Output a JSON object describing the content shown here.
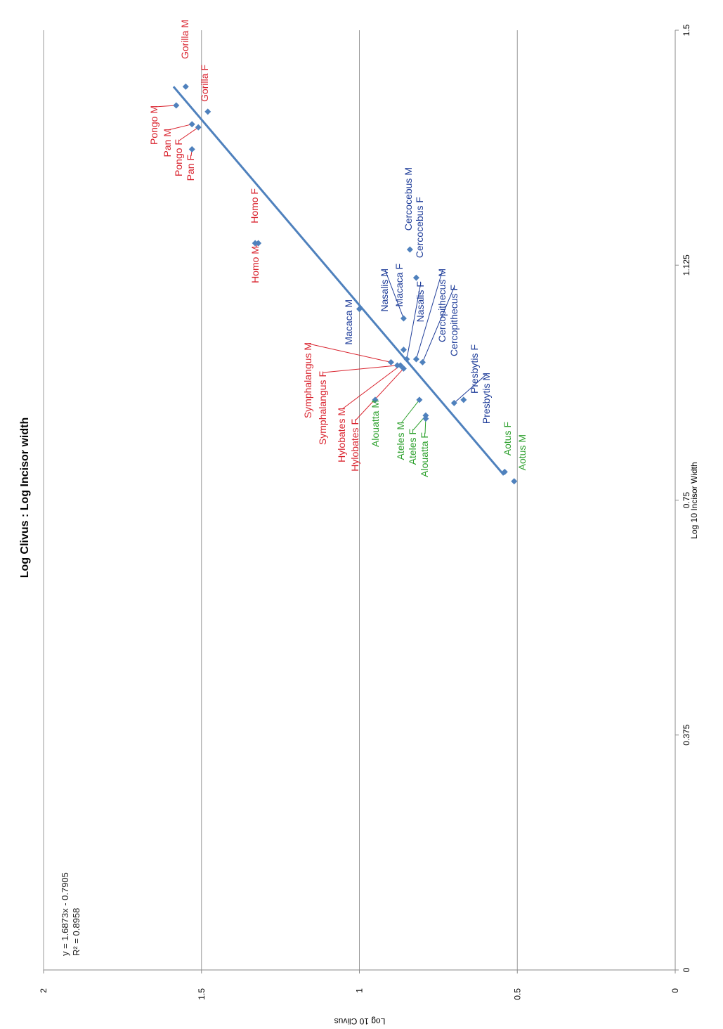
{
  "chart_data": {
    "type": "scatter",
    "orientation": "rotated-90-ccw",
    "title": "Log Clivus : Log Incisor width",
    "xlabel": "Log 10 Incisor Width",
    "ylabel": "Log 10 Clivus",
    "xlim": [
      0,
      1.5
    ],
    "ylim": [
      0,
      2
    ],
    "x_ticks": [
      "0",
      "0.375",
      "0.75",
      "1.125",
      "1.5"
    ],
    "y_ticks": [
      "0",
      "0.5",
      "1",
      "1.5",
      "2"
    ],
    "grid": "horizontal value gridlines",
    "trendline": {
      "slope": 1.6873,
      "intercept": -0.7905,
      "x_range": [
        0.79,
        1.41
      ],
      "equation": "y = 1.6873x - 0.7905",
      "r_squared": "R² = 0.8958",
      "color": "#4f81bd"
    },
    "colors": {
      "red": "#d9232e",
      "blue": "#1f3d99",
      "green": "#2ca02c",
      "marker": "#4f81bd"
    },
    "points": [
      {
        "label": "Gorilla M",
        "x": 1.41,
        "y": 1.55,
        "color": "red"
      },
      {
        "label": "Gorilla F",
        "x": 1.37,
        "y": 1.48,
        "color": "red"
      },
      {
        "label": "Pongo M",
        "x": 1.38,
        "y": 1.58,
        "color": "red"
      },
      {
        "label": "Pan M",
        "x": 1.35,
        "y": 1.53,
        "color": "red"
      },
      {
        "label": "Pongo F",
        "x": 1.345,
        "y": 1.51,
        "color": "red"
      },
      {
        "label": "Pan F",
        "x": 1.31,
        "y": 1.53,
        "color": "red"
      },
      {
        "label": "Homo M",
        "x": 1.16,
        "y": 1.32,
        "color": "red"
      },
      {
        "label": "Homo F",
        "x": 1.16,
        "y": 1.33,
        "color": "red"
      },
      {
        "label": "Macaca M",
        "x": 1.055,
        "y": 1.0,
        "color": "blue"
      },
      {
        "label": "Nasalis M",
        "x": 1.04,
        "y": 0.86,
        "color": "blue"
      },
      {
        "label": "Macaca F",
        "x": 0.99,
        "y": 0.86,
        "color": "blue"
      },
      {
        "label": "Cercocebus M",
        "x": 1.15,
        "y": 0.84,
        "color": "blue"
      },
      {
        "label": "Cercocebus F",
        "x": 1.105,
        "y": 0.82,
        "color": "blue"
      },
      {
        "label": "Nasalis F",
        "x": 0.975,
        "y": 0.85,
        "color": "blue"
      },
      {
        "label": "Cercopithecus M",
        "x": 0.975,
        "y": 0.82,
        "color": "blue"
      },
      {
        "label": "Cercopithecus F",
        "x": 0.97,
        "y": 0.8,
        "color": "blue"
      },
      {
        "label": "Presbytis F",
        "x": 0.91,
        "y": 0.67,
        "color": "blue"
      },
      {
        "label": "Presbytis M",
        "x": 0.905,
        "y": 0.7,
        "color": "blue"
      },
      {
        "label": "Symphalangus M",
        "x": 0.97,
        "y": 0.9,
        "color": "red"
      },
      {
        "label": "Symphalangus F",
        "x": 0.965,
        "y": 0.88,
        "color": "red"
      },
      {
        "label": "Hylobates M",
        "x": 0.965,
        "y": 0.87,
        "color": "red"
      },
      {
        "label": "Hylobates F",
        "x": 0.96,
        "y": 0.86,
        "color": "red"
      },
      {
        "label": "Alouatta M",
        "x": 0.91,
        "y": 0.95,
        "color": "green"
      },
      {
        "label": "Ateles M",
        "x": 0.91,
        "y": 0.81,
        "color": "green"
      },
      {
        "label": "Ateles F",
        "x": 0.885,
        "y": 0.79,
        "color": "green"
      },
      {
        "label": "Alouatta F",
        "x": 0.88,
        "y": 0.79,
        "color": "green"
      },
      {
        "label": "Aotus F",
        "x": 0.795,
        "y": 0.54,
        "color": "green"
      },
      {
        "label": "Aotus M",
        "x": 0.78,
        "y": 0.51,
        "color": "green"
      }
    ]
  }
}
